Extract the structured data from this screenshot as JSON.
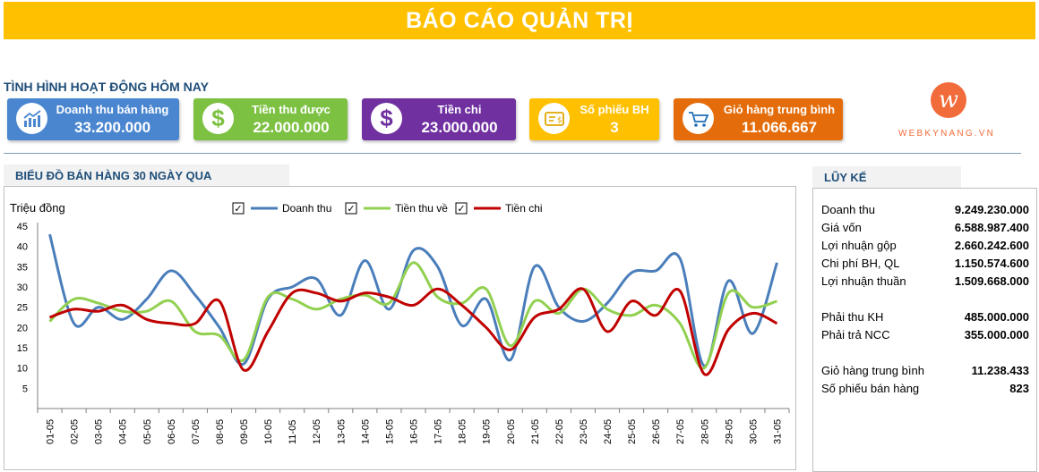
{
  "header": {
    "title": "BÁO CÁO QUẢN TRỊ"
  },
  "today": {
    "title": "TÌNH HÌNH HOẠT ĐỘNG HÔM NAY",
    "cards": [
      {
        "label": "Doanh thu bán hàng",
        "value": "33.200.000",
        "color": "#4A86D0",
        "icon": "bar-chart-icon"
      },
      {
        "label": "Tiền thu được",
        "value": "22.000.000",
        "color": "#7CC142",
        "icon": "dollar-icon"
      },
      {
        "label": "Tiền chi",
        "value": "23.000.000",
        "color": "#7030A0",
        "icon": "dollar-icon"
      },
      {
        "label": "Số phiếu BH",
        "value": "3",
        "color": "#FFC000",
        "icon": "receipt-icon"
      },
      {
        "label": "Giỏ hàng trung bình",
        "value": "11.066.667",
        "color": "#E46C0A",
        "icon": "cart-icon"
      }
    ]
  },
  "logo": {
    "text": "WEBKYNANG.VN",
    "mark": "w"
  },
  "chart_section": {
    "title": "BIỂU ĐỒ BÁN HÀNG 30 NGÀY QUA"
  },
  "chart_data": {
    "type": "line",
    "ylabel": "Triệu đồng",
    "ylim": [
      0,
      45
    ],
    "yticks": [
      5,
      10,
      15,
      20,
      25,
      30,
      35,
      40,
      45
    ],
    "legend_position": "top-center",
    "legend_check": "✓",
    "categories": [
      "01-05",
      "02-05",
      "03-05",
      "04-05",
      "05-05",
      "06-05",
      "07-05",
      "08-05",
      "09-05",
      "10-05",
      "11-05",
      "12-05",
      "13-05",
      "14-05",
      "15-05",
      "16-05",
      "17-05",
      "18-05",
      "19-05",
      "20-05",
      "21-05",
      "22-05",
      "23-05",
      "24-05",
      "25-05",
      "26-05",
      "27-05",
      "28-05",
      "29-05",
      "30-05",
      "31-05"
    ],
    "series": [
      {
        "name": "Doanh thu",
        "color": "#4A7EBB",
        "values": [
          43,
          21,
          25,
          22,
          27,
          34,
          28,
          20,
          11,
          27,
          30,
          32,
          23,
          36.5,
          24.5,
          39,
          35,
          20.5,
          27,
          12,
          35,
          25,
          21.5,
          26,
          33.5,
          34,
          37,
          10.5,
          31.5,
          18.5,
          36
        ]
      },
      {
        "name": "Tiền thu về",
        "color": "#92D050",
        "values": [
          21.5,
          27,
          26,
          24,
          24,
          26.5,
          19,
          18,
          12,
          27.5,
          27,
          24.5,
          27,
          28,
          26,
          36,
          27.5,
          26,
          29.5,
          15.5,
          26.5,
          23.5,
          29.5,
          24.5,
          23,
          25.5,
          21,
          10,
          28.5,
          25,
          26.5
        ]
      },
      {
        "name": "Tiền chi",
        "color": "#C00000",
        "values": [
          22.5,
          24.5,
          24,
          25.5,
          22,
          21,
          21,
          26.5,
          9.5,
          19,
          28.5,
          28.5,
          26.5,
          28.5,
          27.5,
          25.5,
          29.5,
          25.5,
          20,
          14.5,
          22.5,
          24.5,
          29.5,
          19,
          26.5,
          23,
          29,
          8.5,
          19.5,
          23.5,
          21
        ]
      }
    ]
  },
  "accum": {
    "title": "LŨY KẾ",
    "rows": [
      {
        "label": "Doanh thu",
        "value": "9.249.230.000"
      },
      {
        "label": "Giá vốn",
        "value": "6.588.987.400"
      },
      {
        "label": "Lợi nhuận gộp",
        "value": "2.660.242.600"
      },
      {
        "label": "Chi phí BH, QL",
        "value": "1.150.574.600"
      },
      {
        "label": "Lợi nhuận thuần",
        "value": "1.509.668.000"
      },
      {
        "label": "Phải thu KH",
        "value": "485.000.000"
      },
      {
        "label": "Phải trả NCC",
        "value": "355.000.000"
      },
      {
        "label": "Giỏ hàng trung bình",
        "value": "11.238.433"
      },
      {
        "label": "Số phiếu bán hàng",
        "value": "823"
      }
    ]
  }
}
